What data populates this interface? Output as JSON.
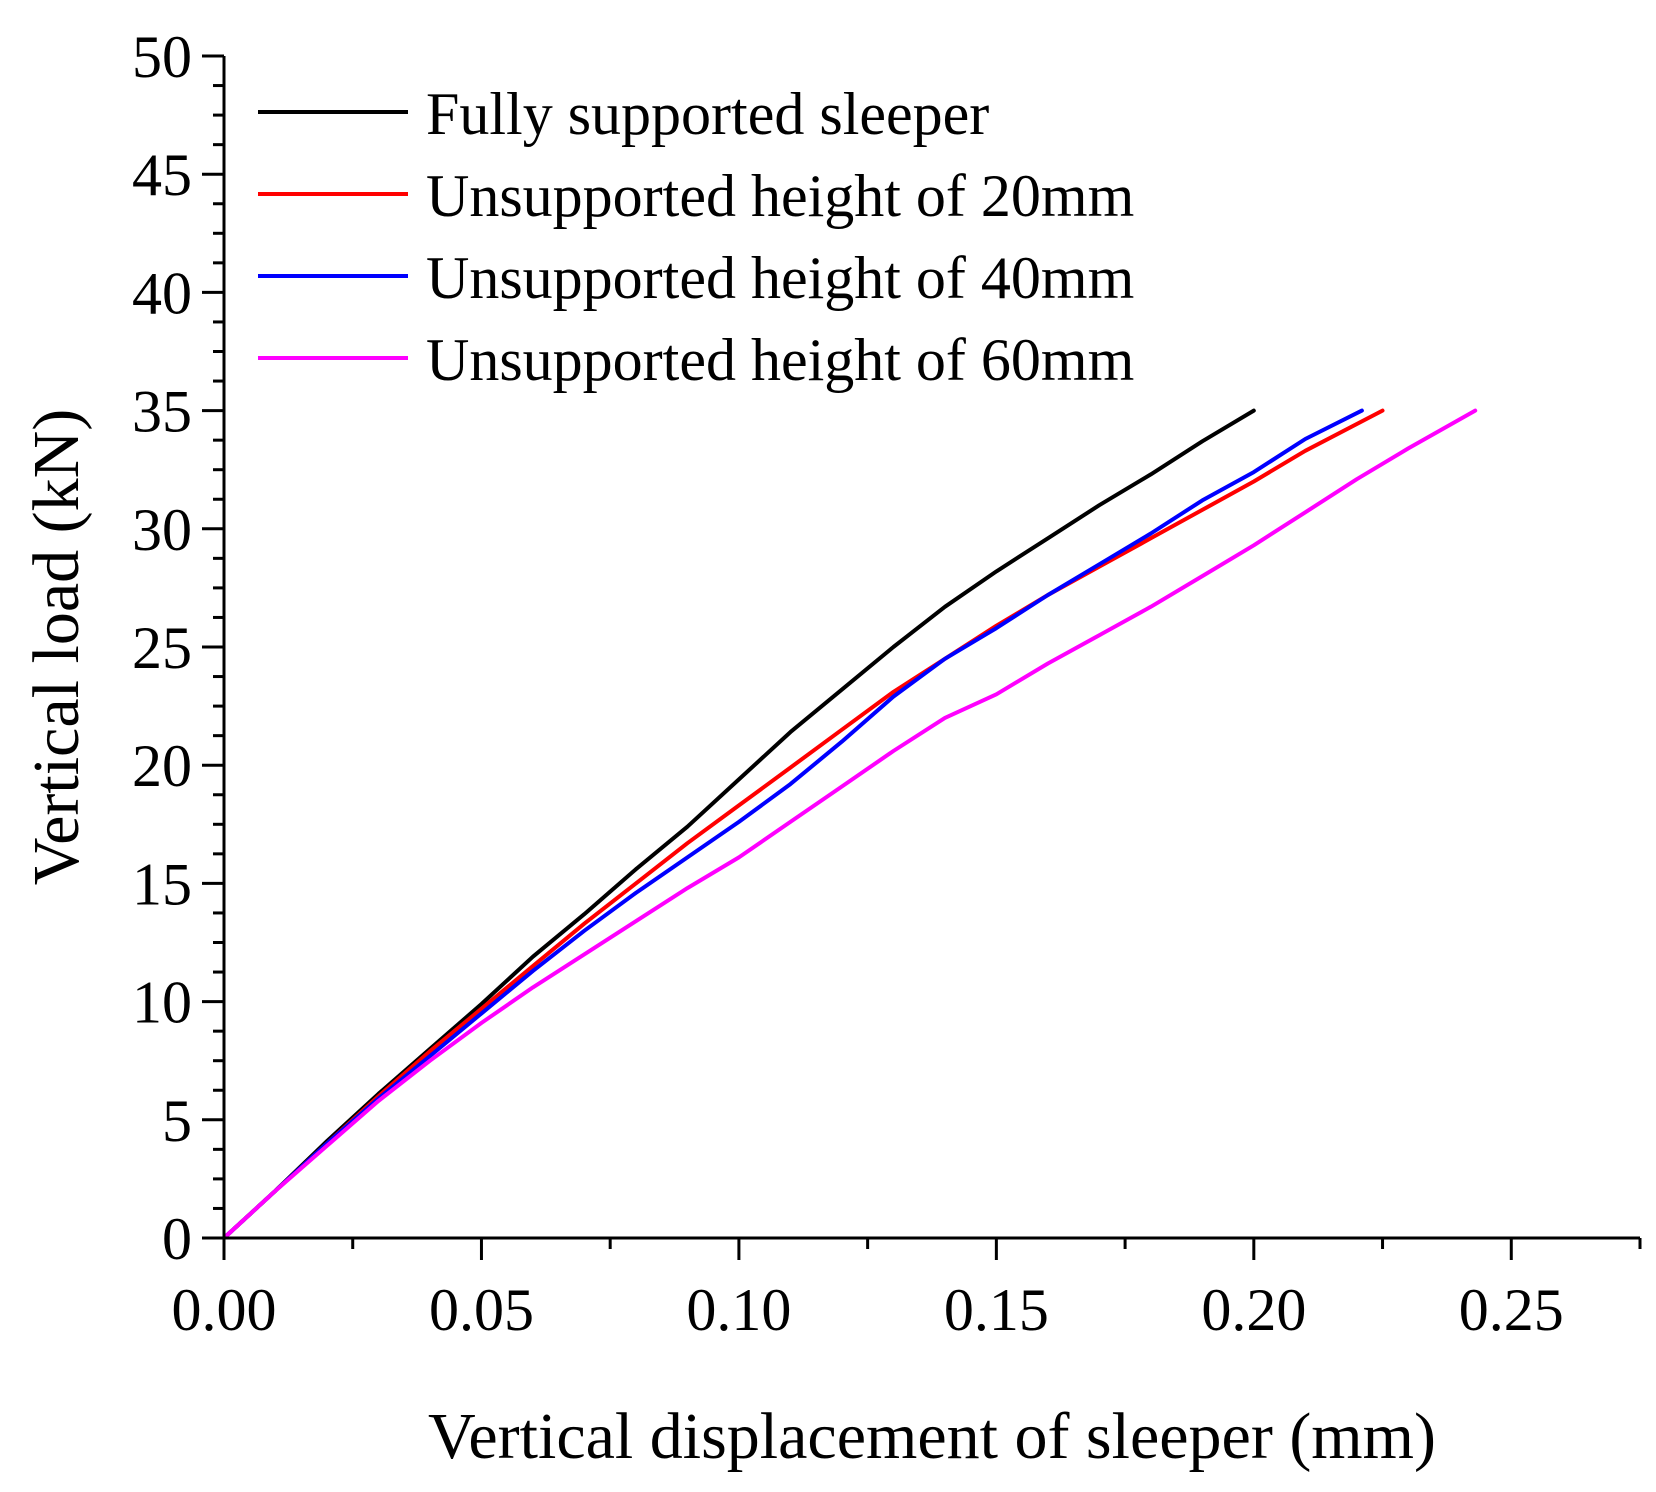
{
  "chart_data": {
    "type": "line",
    "title": "",
    "xlabel": "Vertical displacement of sleeper (mm)",
    "ylabel": "Vertical load (kN)",
    "xlim": [
      0,
      0.275
    ],
    "ylim": [
      0,
      50
    ],
    "xticks": [
      0.0,
      0.05,
      0.1,
      0.15,
      0.2,
      0.25
    ],
    "xtick_labels": [
      "0.00",
      "0.05",
      "0.10",
      "0.15",
      "0.20",
      "0.25"
    ],
    "yticks": [
      0,
      5,
      10,
      15,
      20,
      25,
      30,
      35,
      40,
      45,
      50
    ],
    "ytick_labels": [
      "0",
      "5",
      "10",
      "15",
      "20",
      "25",
      "30",
      "35",
      "40",
      "45",
      "50"
    ],
    "grid": false,
    "legend_position": "top-left",
    "series": [
      {
        "name": "Fully supported sleeper",
        "color": "#000000",
        "x": [
          0,
          0.01,
          0.02,
          0.03,
          0.04,
          0.05,
          0.06,
          0.07,
          0.08,
          0.09,
          0.1,
          0.11,
          0.12,
          0.13,
          0.14,
          0.15,
          0.16,
          0.17,
          0.18,
          0.19,
          0.2
        ],
        "y": [
          0,
          2.0,
          4.1,
          6.1,
          8.0,
          9.9,
          11.9,
          13.7,
          15.6,
          17.4,
          19.4,
          21.4,
          23.2,
          25.0,
          26.7,
          28.2,
          29.6,
          31.0,
          32.3,
          33.7,
          35.0
        ]
      },
      {
        "name": "Unsupported height of 20mm",
        "color": "#ff0000",
        "x": [
          0,
          0.01,
          0.02,
          0.03,
          0.04,
          0.05,
          0.06,
          0.07,
          0.08,
          0.09,
          0.1,
          0.11,
          0.12,
          0.13,
          0.14,
          0.15,
          0.16,
          0.17,
          0.18,
          0.19,
          0.2,
          0.21,
          0.225
        ],
        "y": [
          0,
          2.0,
          4.0,
          6.0,
          7.9,
          9.7,
          11.5,
          13.3,
          15.0,
          16.7,
          18.3,
          19.9,
          21.5,
          23.1,
          24.5,
          25.9,
          27.2,
          28.4,
          29.6,
          30.8,
          32.0,
          33.3,
          35.0
        ]
      },
      {
        "name": "Unsupported height of 40mm",
        "color": "#0000ff",
        "x": [
          0,
          0.01,
          0.02,
          0.03,
          0.04,
          0.05,
          0.06,
          0.07,
          0.08,
          0.09,
          0.1,
          0.11,
          0.12,
          0.13,
          0.14,
          0.15,
          0.16,
          0.17,
          0.18,
          0.19,
          0.2,
          0.21,
          0.221
        ],
        "y": [
          0,
          2.0,
          4.0,
          5.9,
          7.7,
          9.5,
          11.3,
          13.0,
          14.6,
          16.1,
          17.6,
          19.2,
          21.0,
          22.9,
          24.5,
          25.8,
          27.2,
          28.5,
          29.8,
          31.2,
          32.4,
          33.8,
          35.0
        ]
      },
      {
        "name": "Unsupported height of 60mm",
        "color": "#ff00ff",
        "x": [
          0,
          0.01,
          0.02,
          0.03,
          0.04,
          0.05,
          0.06,
          0.07,
          0.08,
          0.09,
          0.1,
          0.11,
          0.12,
          0.13,
          0.14,
          0.15,
          0.16,
          0.17,
          0.18,
          0.19,
          0.2,
          0.21,
          0.22,
          0.23,
          0.243
        ],
        "y": [
          0,
          2.0,
          3.9,
          5.8,
          7.5,
          9.1,
          10.6,
          12.0,
          13.4,
          14.8,
          16.1,
          17.6,
          19.1,
          20.6,
          22.0,
          23.0,
          24.3,
          25.5,
          26.7,
          28.0,
          29.3,
          30.7,
          32.1,
          33.4,
          35.0
        ]
      }
    ]
  }
}
